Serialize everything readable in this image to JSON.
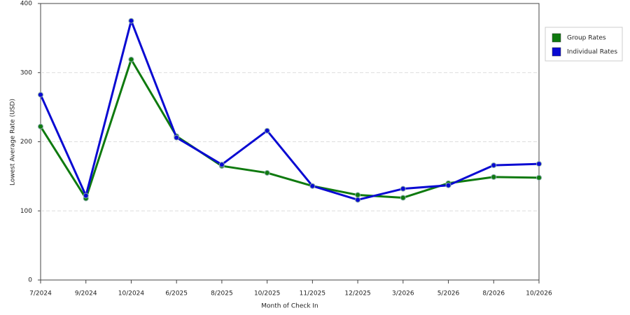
{
  "chart_data": {
    "type": "line",
    "x_label": "Month of Check In",
    "y_label": "Lowest Average Rate (USD)",
    "categories": [
      "7/2024",
      "9/2024",
      "10/2024",
      "6/2025",
      "8/2025",
      "10/2025",
      "11/2025",
      "12/2025",
      "3/2026",
      "5/2026",
      "8/2026",
      "10/2026"
    ],
    "series": [
      {
        "name": "Group Rates",
        "color": "#0f7a0f",
        "values": [
          222,
          118,
          319,
          208,
          165,
          155,
          136,
          123,
          119,
          140,
          149,
          148
        ]
      },
      {
        "name": "Individual Rates",
        "color": "#0a0ad2",
        "values": [
          268,
          122,
          375,
          206,
          167,
          216,
          136,
          116,
          132,
          137,
          166,
          168
        ]
      }
    ],
    "ylim": [
      0,
      400
    ],
    "yticks": [
      0,
      100,
      200,
      300,
      400
    ],
    "grid": true
  }
}
